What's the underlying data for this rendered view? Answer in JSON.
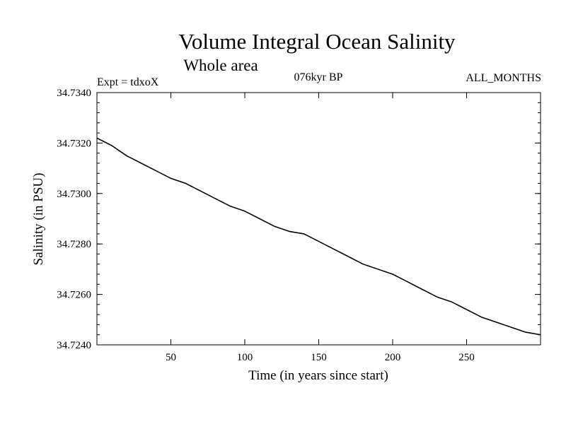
{
  "chart_data": {
    "type": "line",
    "title": "Volume Integral Ocean Salinity",
    "subtitle": "Whole area",
    "experiment": "Expt = tdxoX",
    "period": "076kyr BP",
    "months": "ALL_MONTHS",
    "xlabel": "Time (in years since start)",
    "ylabel": "Salinity (in PSU)",
    "xlim": [
      0,
      300
    ],
    "ylim": [
      34.724,
      34.734
    ],
    "xticks": [
      50,
      100,
      150,
      200,
      250
    ],
    "xtick_labels": [
      "50",
      "100",
      "150",
      "200",
      "250"
    ],
    "yticks": [
      34.724,
      34.726,
      34.728,
      34.73,
      34.732,
      34.734
    ],
    "ytick_labels": [
      "34.7240",
      "34.7260",
      "34.7280",
      "34.7300",
      "34.7320",
      "34.7340"
    ],
    "grid": false,
    "series": [
      {
        "color": "#000000",
        "x": [
          0,
          10,
          20,
          30,
          40,
          50,
          60,
          70,
          80,
          90,
          100,
          110,
          120,
          130,
          140,
          150,
          160,
          170,
          180,
          190,
          200,
          210,
          220,
          230,
          240,
          250,
          260,
          270,
          280,
          290,
          300
        ],
        "y": [
          34.7322,
          34.7319,
          34.7315,
          34.7312,
          34.7309,
          34.7306,
          34.7304,
          34.7301,
          34.7298,
          34.7295,
          34.7293,
          34.729,
          34.7287,
          34.7285,
          34.7284,
          34.7281,
          34.7278,
          34.7275,
          34.7272,
          34.727,
          34.7268,
          34.7265,
          34.7262,
          34.7259,
          34.7257,
          34.7254,
          34.7251,
          34.7249,
          34.7247,
          34.7245,
          34.7244
        ]
      }
    ]
  }
}
